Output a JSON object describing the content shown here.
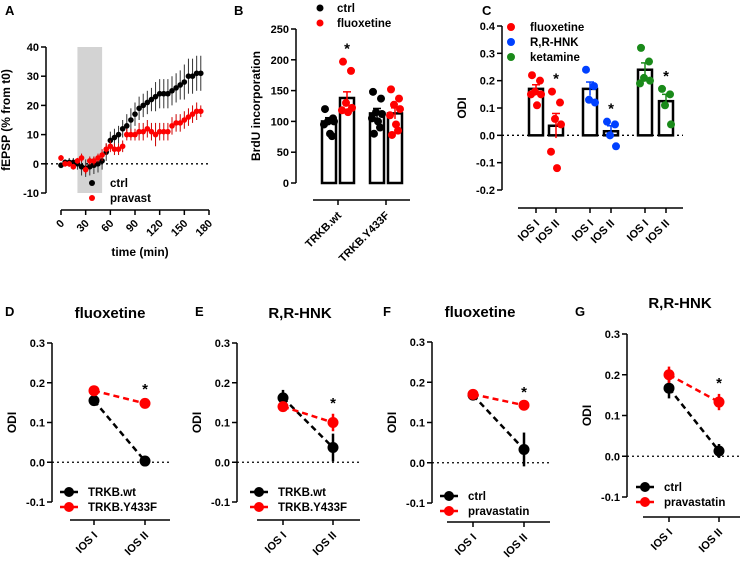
{
  "chart_data": [
    {
      "panel": "A",
      "type": "line",
      "ylabel": "fEPSP (% from t0)",
      "xlabel": "time (min)",
      "xlim": [
        0,
        180
      ],
      "ylim": [
        -10,
        40
      ],
      "xticks": [
        "0",
        "30",
        "60",
        "90",
        "120",
        "150",
        "180"
      ],
      "yticks": [
        "-10",
        "0",
        "10",
        "20",
        "30",
        "40"
      ],
      "shaded_interval": [
        20,
        50
      ],
      "shade_color": "#d3d3d3",
      "zero_line": "dotted",
      "legend": "bottom-left",
      "x": [
        0,
        5,
        10,
        15,
        20,
        25,
        30,
        35,
        40,
        45,
        50,
        55,
        60,
        65,
        70,
        75,
        80,
        85,
        90,
        95,
        100,
        105,
        110,
        115,
        120,
        125,
        130,
        135,
        140,
        145,
        150,
        155,
        160,
        165,
        170
      ],
      "series": [
        {
          "name": "ctrl",
          "color": "#000000",
          "values": [
            -0.5,
            0.5,
            0.5,
            0.5,
            0,
            -1,
            -1.5,
            -1,
            -0.5,
            0,
            1,
            4,
            8,
            9,
            10,
            12,
            13,
            15,
            17,
            19,
            20,
            21,
            22,
            23,
            24,
            24,
            24,
            25,
            26,
            27,
            28,
            30,
            30,
            31,
            31
          ],
          "err": [
            1,
            1,
            1.5,
            1.5,
            2,
            3,
            3,
            3,
            3,
            3,
            3,
            3,
            3,
            3,
            3,
            3,
            4,
            4,
            4,
            4,
            4,
            4,
            4,
            5,
            5,
            5,
            5,
            5,
            5,
            5,
            6,
            6,
            6,
            6,
            6
          ]
        },
        {
          "name": "pravast",
          "color": "#ff0000",
          "values": [
            2,
            0,
            0,
            -1,
            1,
            2,
            -2,
            1,
            1,
            2,
            3,
            5,
            6,
            5,
            5,
            6,
            10,
            10,
            10,
            11,
            11,
            12,
            11,
            10,
            11,
            11,
            11,
            13,
            14,
            14,
            15,
            16,
            17,
            18,
            18
          ],
          "err": [
            1,
            1,
            1,
            1,
            1,
            1.5,
            1.5,
            1.5,
            1.5,
            1.5,
            2,
            2,
            2,
            2,
            2,
            2,
            2,
            2,
            2,
            3,
            3,
            3,
            3,
            4,
            3,
            3,
            3,
            3,
            3,
            3,
            3,
            3,
            3,
            3,
            2
          ]
        }
      ]
    },
    {
      "panel": "B",
      "type": "bar",
      "ylabel": "BrdU incorporation",
      "categories": [
        "TRKB.wt",
        "TRKB.Y433F"
      ],
      "ylim": [
        0,
        250
      ],
      "yticks": [
        "0",
        "50",
        "100",
        "150",
        "200",
        "250"
      ],
      "legend": "top",
      "series": [
        {
          "name": "ctrl",
          "color": "#000000",
          "values": [
            100,
            113
          ],
          "err": [
            6,
            8
          ],
          "points": [
            [
              120,
              105,
              100,
              100,
              95,
              80,
              76
            ],
            [
              148,
              137,
              115,
              112,
              105,
              100,
              90,
              80
            ]
          ]
        },
        {
          "name": "fluoxetine",
          "color": "#ff0000",
          "values": [
            138,
            113
          ],
          "err": [
            10,
            9
          ],
          "points": [
            [
              197,
              182,
              130,
              122,
              118,
              115
            ],
            [
              152,
              137,
              127,
              120,
              110,
              95,
              85,
              78
            ]
          ]
        }
      ],
      "annotations": [
        {
          "text": "*",
          "category_index": 0,
          "series_index": 1
        }
      ]
    },
    {
      "panel": "C",
      "type": "bar",
      "ylabel": "ODI",
      "categories": [
        "IOS I",
        "IOS II"
      ],
      "ylim": [
        -0.2,
        0.4
      ],
      "yticks": [
        "-0.2",
        "-0.1",
        "0.0",
        "0.1",
        "0.2",
        "0.3",
        "0.4"
      ],
      "zero_line": "dotted",
      "legend": "top-left",
      "series": [
        {
          "name": "fluoxetine",
          "color": "#ff0000",
          "values": [
            0.17,
            0.035
          ],
          "err": [
            0.015,
            0.045
          ],
          "points": [
            [
              0.22,
              0.2,
              0.16,
              0.15,
              0.15,
              0.11
            ],
            [
              0.16,
              0.12,
              0.06,
              0.04,
              -0.06,
              -0.12
            ]
          ]
        },
        {
          "name": "R,R-HNK",
          "color": "#0040ff",
          "values": [
            0.17,
            0.015
          ],
          "err": [
            0.025,
            0.02
          ],
          "points": [
            [
              0.24,
              0.18,
              0.13,
              0.12
            ],
            [
              0.05,
              0.04,
              0.0,
              -0.04
            ]
          ]
        },
        {
          "name": "ketamine",
          "color": "#1a8a1a",
          "values": [
            0.24,
            0.125
          ],
          "err": [
            0.025,
            0.025
          ],
          "points": [
            [
              0.32,
              0.27,
              0.21,
              0.2,
              0.19
            ],
            [
              0.17,
              0.15,
              0.11,
              0.04
            ]
          ]
        }
      ],
      "annotations": [
        {
          "text": "*",
          "category_index": 1
        }
      ]
    },
    {
      "panel": "D",
      "type": "line",
      "title": "fluoxetine",
      "ylabel": "ODI",
      "categories": [
        "IOS I",
        "IOS II"
      ],
      "ylim": [
        -0.1,
        0.3
      ],
      "yticks": [
        "-0.1",
        "0.0",
        "0.1",
        "0.2",
        "0.3"
      ],
      "zero_line": "dotted",
      "legend": "bottom-left",
      "series": [
        {
          "name": "TRKB.wt",
          "color": "#000000",
          "values": [
            0.155,
            0.003
          ],
          "err": [
            0.008,
            0.005
          ]
        },
        {
          "name": "TRKB.Y433F",
          "color": "#ff0000",
          "values": [
            0.18,
            0.148
          ],
          "err": [
            0.008,
            0.008
          ]
        }
      ],
      "annotations": [
        {
          "text": "*",
          "category_index": 1
        }
      ]
    },
    {
      "panel": "E",
      "type": "line",
      "title": "R,R-HNK",
      "ylabel": "ODI",
      "categories": [
        "IOS I",
        "IOS II"
      ],
      "ylim": [
        -0.1,
        0.3
      ],
      "yticks": [
        "-0.1",
        "0.0",
        "0.1",
        "0.2",
        "0.3"
      ],
      "zero_line": "dotted",
      "legend": "bottom-left",
      "series": [
        {
          "name": "TRKB.wt",
          "color": "#000000",
          "values": [
            0.162,
            0.037
          ],
          "err": [
            0.02,
            0.035
          ]
        },
        {
          "name": "TRKB.Y433F",
          "color": "#ff0000",
          "values": [
            0.14,
            0.1
          ],
          "err": [
            0.008,
            0.022
          ]
        }
      ],
      "annotations": [
        {
          "text": "*",
          "category_index": 1
        }
      ]
    },
    {
      "panel": "F",
      "type": "line",
      "title": "fluoxetine",
      "ylabel": "ODI",
      "categories": [
        "IOS I",
        "IOS II"
      ],
      "ylim": [
        -0.1,
        0.3
      ],
      "yticks": [
        "-0.1",
        "0.0",
        "0.1",
        "0.2",
        "0.3"
      ],
      "zero_line": "dotted",
      "legend": "bottom-left",
      "series": [
        {
          "name": "ctrl",
          "color": "#000000",
          "values": [
            0.168,
            0.033
          ],
          "err": [
            0.008,
            0.042
          ]
        },
        {
          "name": "pravastatin",
          "color": "#ff0000",
          "values": [
            0.17,
            0.143
          ],
          "err": [
            0.006,
            0.006
          ]
        }
      ],
      "annotations": [
        {
          "text": "*",
          "category_index": 1
        }
      ]
    },
    {
      "panel": "G",
      "type": "line",
      "title": "R,R-HNK",
      "ylabel": "ODI",
      "categories": [
        "IOS I",
        "IOS II"
      ],
      "ylim": [
        -0.1,
        0.3
      ],
      "yticks": [
        "-0.1",
        "0.0",
        "0.1",
        "0.2",
        "0.3"
      ],
      "zero_line": "dotted",
      "legend": "bottom-left",
      "series": [
        {
          "name": "ctrl",
          "color": "#000000",
          "values": [
            0.167,
            0.013
          ],
          "err": [
            0.025,
            0.017
          ]
        },
        {
          "name": "pravastatin",
          "color": "#ff0000",
          "values": [
            0.2,
            0.133
          ],
          "err": [
            0.02,
            0.02
          ]
        }
      ],
      "annotations": [
        {
          "text": "*",
          "category_index": 1
        }
      ]
    }
  ]
}
